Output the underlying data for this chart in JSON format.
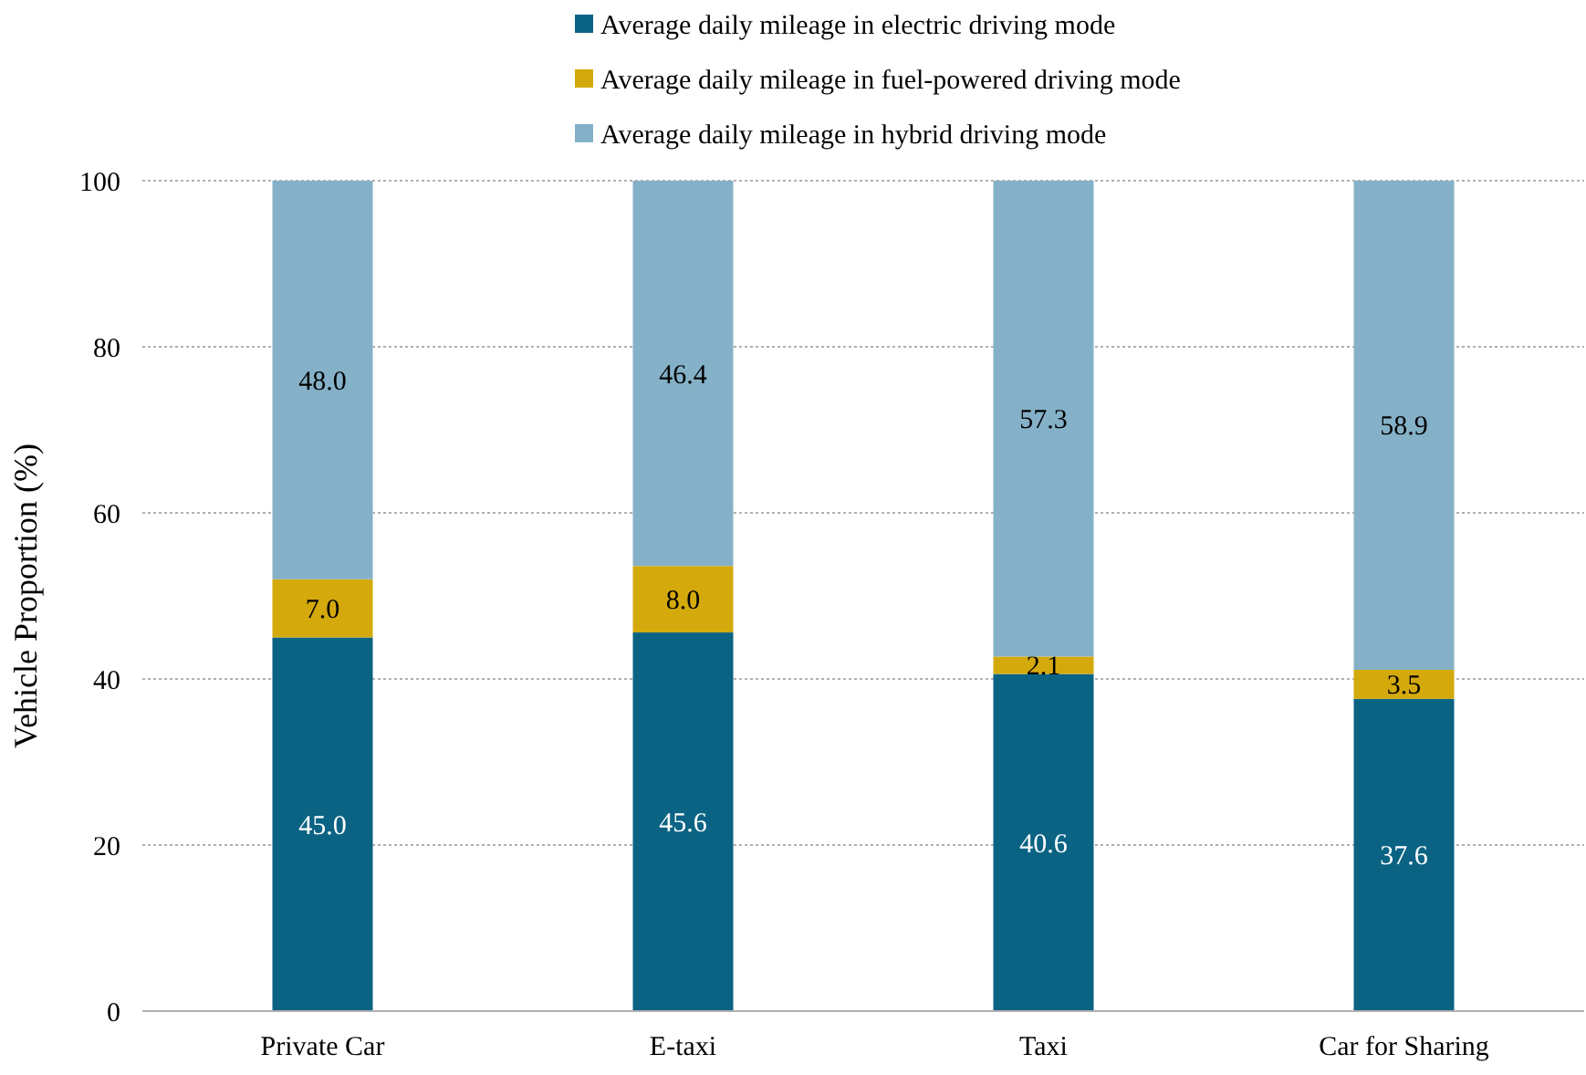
{
  "chart_data": {
    "type": "bar",
    "stacked": true,
    "ylabel": "Vehicle Proportion (%)",
    "categories": [
      "Private Car",
      "E-taxi",
      "Taxi",
      "Car for Sharing"
    ],
    "series": [
      {
        "name": "Average daily mileage in electric driving mode",
        "color": "#0b6384",
        "values": [
          45.0,
          45.6,
          40.6,
          37.6
        ],
        "value_labels": [
          "45.0",
          "45.6",
          "40.6",
          "37.6"
        ]
      },
      {
        "name": "Average daily mileage in fuel-powered driving mode",
        "color": "#d4a90c",
        "values": [
          7.0,
          8.0,
          2.1,
          3.5
        ],
        "value_labels": [
          "7.0",
          "8.0",
          "2.1",
          "3.5"
        ]
      },
      {
        "name": "Average daily mileage in hybrid driving mode",
        "color": "#85b1c8",
        "values": [
          48.0,
          46.4,
          57.3,
          58.9
        ],
        "value_labels": [
          "48.0",
          "46.4",
          "57.3",
          "58.9"
        ]
      }
    ],
    "ylim": [
      0,
      100
    ],
    "yticks": [
      0,
      20,
      40,
      60,
      80,
      100
    ],
    "grid": "y",
    "legend": "top"
  }
}
